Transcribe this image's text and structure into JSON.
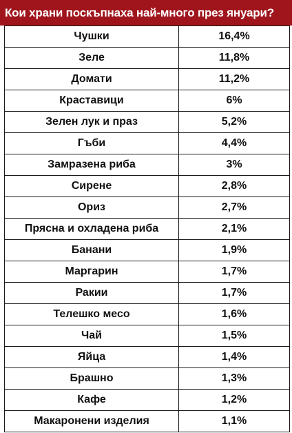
{
  "header": {
    "title": "Кои храни поскъпнаха най-много през януари?"
  },
  "colors": {
    "header_bg": "#a0151c",
    "header_text": "#ffffff",
    "border": "#1a1a1a"
  },
  "rows": [
    {
      "item": "Чушки",
      "value": "16,4%"
    },
    {
      "item": "Зеле",
      "value": "11,8%"
    },
    {
      "item": "Домати",
      "value": "11,2%"
    },
    {
      "item": "Краставици",
      "value": "6%"
    },
    {
      "item": "Зелен лук и праз",
      "value": "5,2%"
    },
    {
      "item": "Гъби",
      "value": "4,4%"
    },
    {
      "item": "Замразена риба",
      "value": "3%"
    },
    {
      "item": "Сирене",
      "value": "2,8%"
    },
    {
      "item": "Ориз",
      "value": "2,7%"
    },
    {
      "item": "Прясна и охладена риба",
      "value": "2,1%"
    },
    {
      "item": "Банани",
      "value": "1,9%"
    },
    {
      "item": "Маргарин",
      "value": "1,7%"
    },
    {
      "item": "Ракии",
      "value": "1,7%"
    },
    {
      "item": "Телешко месо",
      "value": "1,6%"
    },
    {
      "item": "Чай",
      "value": "1,5%"
    },
    {
      "item": "Яйца",
      "value": "1,4%"
    },
    {
      "item": "Брашно",
      "value": "1,3%"
    },
    {
      "item": "Кафе",
      "value": "1,2%"
    },
    {
      "item": "Макаронени изделия",
      "value": "1,1%"
    }
  ]
}
